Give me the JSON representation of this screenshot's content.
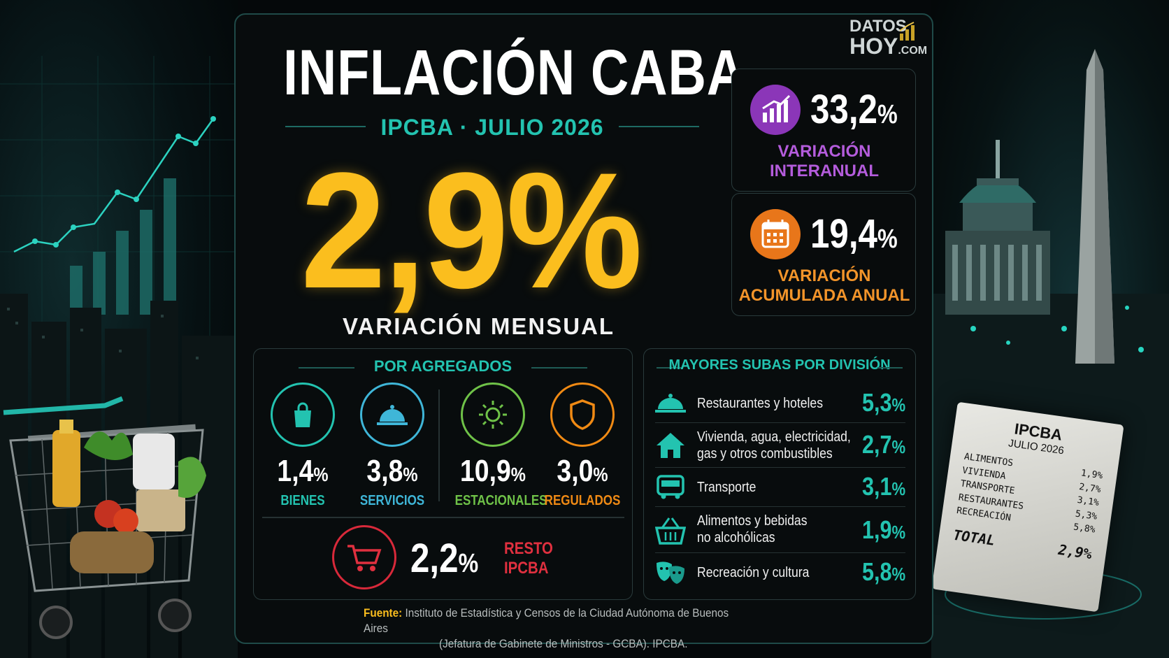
{
  "brand": {
    "top": "DATOS",
    "bottom": "HOY",
    "suffix": ".COM"
  },
  "title": "INFLACIÓN CABA",
  "subtitle": "IPCBA · JULIO 2026",
  "headline": {
    "value": "2,9%",
    "label": "VARIACIÓN MENSUAL"
  },
  "cards": [
    {
      "value": "33,2",
      "pct": "%",
      "label_1": "VARIACIÓN",
      "label_2": "INTERANUAL",
      "color": "#9b3fc4",
      "icon": "chart-up-icon"
    },
    {
      "value": "19,4",
      "pct": "%",
      "label_1": "VARIACIÓN",
      "label_2": "ACUMULADA ANUAL",
      "color": "#f07d14",
      "icon": "calendar-icon"
    }
  ],
  "agregados": {
    "heading": "POR AGREGADOS",
    "items": [
      {
        "value": "1,4",
        "pct": "%",
        "label": "BIENES",
        "color": "#23c3b0",
        "icon": "shopping-bag-icon"
      },
      {
        "value": "3,8",
        "pct": "%",
        "label": "SERVICIOS",
        "color": "#3fb6d8",
        "icon": "service-bell-icon"
      },
      {
        "value": "10,9",
        "pct": "%",
        "label": "ESTACIONALES",
        "color": "#6fc248",
        "icon": "sun-icon"
      },
      {
        "value": "3,0",
        "pct": "%",
        "label": "REGULADOS",
        "color": "#f08a14",
        "icon": "shield-icon"
      }
    ],
    "resto": {
      "value": "2,2",
      "pct": "%",
      "label_1": "RESTO",
      "label_2": "IPCBA",
      "color": "#e0303f",
      "icon": "shopping-cart-icon"
    }
  },
  "divisiones": {
    "heading": "MAYORES SUBAS POR DIVISIÓN",
    "rows": [
      {
        "name_1": "Restaurantes y hoteles",
        "name_2": "",
        "value": "5,3",
        "pct": "%",
        "icon": "service-bell-icon"
      },
      {
        "name_1": "Vivienda, agua, electricidad,",
        "name_2": "gas y otros combustibles",
        "value": "2,7",
        "pct": "%",
        "icon": "house-icon"
      },
      {
        "name_1": "Transporte",
        "name_2": "",
        "value": "3,1",
        "pct": "%",
        "icon": "bus-icon"
      },
      {
        "name_1": "Alimentos y bebidas",
        "name_2": "no alcohólicas",
        "value": "1,9",
        "pct": "%",
        "icon": "basket-icon"
      },
      {
        "name_1": "Recreación y cultura",
        "name_2": "",
        "value": "5,8",
        "pct": "%",
        "icon": "theater-masks-icon"
      }
    ]
  },
  "source": {
    "label": "Fuente:",
    "text_1": "Instituto de Estadística y Censos de la Ciudad Autónoma de Buenos Aires",
    "text_2": "(Jefatura de Gabinete de Ministros - GCBA). IPCBA."
  },
  "receipt": {
    "title": "IPCBA",
    "date": "JULIO 2026",
    "rows": [
      {
        "name": "ALIMENTOS",
        "value": "1,9%"
      },
      {
        "name": "VIVIENDA",
        "value": "2,7%"
      },
      {
        "name": "TRANSPORTE",
        "value": "3,1%"
      },
      {
        "name": "RESTAURANTES",
        "value": "5,3%"
      },
      {
        "name": "RECREACIÓN",
        "value": "5,8%"
      }
    ],
    "total_label": "TOTAL",
    "total_value": "2,9%"
  },
  "colors": {
    "accent": "#23c3b0",
    "headline": "#fbbe1e",
    "background": "#05080a"
  }
}
